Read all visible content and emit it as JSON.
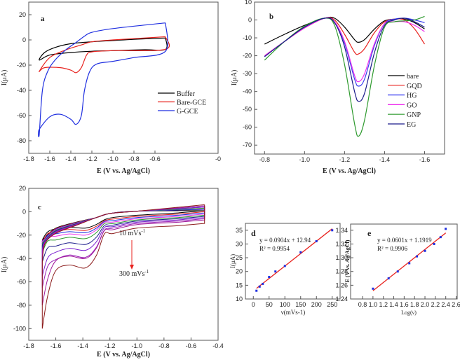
{
  "chart_data": [
    {
      "panel": "a",
      "type": "line",
      "xlabel": "E (V vs. Ag/AgCl)",
      "ylabel": "I(μA)",
      "xlim": [
        -1.8,
        0
      ],
      "ylim": [
        -90,
        30
      ],
      "xticks": [
        -1.8,
        -1.6,
        -1.4,
        -1.2,
        -1.0,
        -0.8,
        -0.6,
        0
      ],
      "xticklabels": [
        "-1.8",
        "-1.6",
        "-1.4",
        "-1.2",
        "-1.0",
        "-0.8",
        "-0.6",
        "-0"
      ],
      "yticks": [
        20,
        0,
        -20,
        -40,
        -60,
        -80
      ],
      "yticklabels": [
        "20",
        "0",
        "-20",
        "-40",
        "-60",
        "-80"
      ],
      "legend": "right",
      "series": [
        {
          "name": "Buffer",
          "color": "#000000",
          "points": [
            [
              -0.5,
              1.5
            ],
            [
              -0.8,
              0.5
            ],
            [
              -1.0,
              -0.5
            ],
            [
              -1.2,
              -1.5
            ],
            [
              -1.4,
              -3
            ],
            [
              -1.55,
              -6
            ],
            [
              -1.65,
              -10
            ],
            [
              -1.7,
              -16
            ],
            [
              -1.6,
              -12
            ],
            [
              -1.4,
              -10
            ],
            [
              -1.2,
              -9
            ],
            [
              -1.0,
              -8.5
            ],
            [
              -0.7,
              -7.8
            ],
            [
              -0.5,
              -7.5
            ],
            [
              -0.5,
              1.5
            ]
          ]
        },
        {
          "name": "Bare-GCE",
          "color": "#e8231f",
          "points": [
            [
              -0.5,
              2.5
            ],
            [
              -1.0,
              0
            ],
            [
              -1.2,
              -1.5
            ],
            [
              -1.3,
              -4
            ],
            [
              -1.45,
              -8
            ],
            [
              -1.6,
              -14
            ],
            [
              -1.7,
              -25
            ],
            [
              -1.65,
              -22
            ],
            [
              -1.5,
              -22
            ],
            [
              -1.4,
              -24
            ],
            [
              -1.35,
              -26
            ],
            [
              -1.3,
              -22
            ],
            [
              -1.25,
              -12
            ],
            [
              -1.2,
              -9.5
            ],
            [
              -1.0,
              -8.5
            ],
            [
              -0.5,
              -7.5
            ],
            [
              -0.5,
              2.5
            ]
          ]
        },
        {
          "name": "G-GCE",
          "color": "#1f2fe0",
          "points": [
            [
              -0.5,
              13.5
            ],
            [
              -1.0,
              9
            ],
            [
              -1.2,
              6
            ],
            [
              -1.27,
              3
            ],
            [
              -1.35,
              -2
            ],
            [
              -1.45,
              -8
            ],
            [
              -1.55,
              -16
            ],
            [
              -1.62,
              -25
            ],
            [
              -1.67,
              -40
            ],
            [
              -1.7,
              -75
            ],
            [
              -1.7,
              -71
            ],
            [
              -1.6,
              -61
            ],
            [
              -1.5,
              -59
            ],
            [
              -1.4,
              -63
            ],
            [
              -1.35,
              -67
            ],
            [
              -1.3,
              -60
            ],
            [
              -1.27,
              -40
            ],
            [
              -1.22,
              -25
            ],
            [
              -1.15,
              -19
            ],
            [
              -1.0,
              -17
            ],
            [
              -0.8,
              -14
            ],
            [
              -0.5,
              -9
            ],
            [
              -0.5,
              13.5
            ]
          ]
        }
      ]
    },
    {
      "panel": "b",
      "type": "line",
      "xlabel": "E (V vs. Ag/AgCl)",
      "ylabel": "I(μA)",
      "xlim": [
        -0.75,
        -1.7
      ],
      "ylim": [
        -75,
        10
      ],
      "xticks": [
        -0.8,
        -1.0,
        -1.2,
        -1.4,
        -1.6
      ],
      "xticklabels": [
        "-0.8",
        "-1.0",
        "-1.2",
        "-1.4",
        "-1.6"
      ],
      "yticks": [
        10,
        0,
        -10,
        -20,
        -30,
        -40,
        -50,
        -60,
        -70
      ],
      "yticklabels": [
        "10",
        "0",
        "-10",
        "-20",
        "-30",
        "-40",
        "-50",
        "-60",
        "-70"
      ],
      "legend": "right",
      "x": [
        -0.8,
        -0.9,
        -1.0,
        -1.1,
        -1.15,
        -1.2,
        -1.25,
        -1.27,
        -1.3,
        -1.35,
        -1.4,
        -1.45,
        -1.5,
        -1.55,
        -1.6
      ],
      "series": [
        {
          "name": "bare",
          "color": "#000000",
          "values": [
            -13.5,
            -8,
            -3,
            1,
            1,
            -4,
            -11,
            -12.5,
            -11,
            -5,
            -0.5,
            0.5,
            0.5,
            -1.5,
            -5
          ]
        },
        {
          "name": "GQD",
          "color": "#e8231f",
          "values": [
            -20,
            -12,
            -4.5,
            1,
            0,
            -8,
            -18,
            -19,
            -16,
            -7,
            -1,
            0.5,
            0,
            -5,
            -13.5
          ]
        },
        {
          "name": "HG",
          "color": "#3a3ef0",
          "values": [
            -20.5,
            -12,
            -4,
            1,
            -1,
            -13,
            -33,
            -37,
            -33,
            -14,
            -2,
            0.5,
            1,
            0,
            -1.5
          ]
        },
        {
          "name": "GO",
          "color": "#ee33ee",
          "values": [
            -20,
            -12,
            -4.5,
            1,
            -1,
            -12,
            -31,
            -34.5,
            -30,
            -13,
            -2,
            -1,
            -1,
            -3,
            -6.5
          ]
        },
        {
          "name": "GNP",
          "color": "#2e9a2e",
          "values": [
            -22.5,
            -12,
            -3.5,
            1,
            -3,
            -25,
            -58,
            -65,
            -56,
            -25,
            -4,
            -1,
            -0.5,
            0,
            2
          ]
        },
        {
          "name": "EG",
          "color": "#1a1a8a",
          "values": [
            -20.5,
            -12,
            -4,
            1,
            -1.5,
            -15,
            -40,
            -45.5,
            -41,
            -18,
            -3,
            0,
            1,
            -1,
            -4
          ]
        }
      ]
    },
    {
      "panel": "c",
      "type": "line",
      "xlabel": "E (V vs. Ag/AgCl)",
      "ylabel": "I(μA)",
      "xlim": [
        -1.8,
        -0.4
      ],
      "ylim": [
        -110,
        20
      ],
      "xticks": [
        -1.8,
        -1.6,
        -1.4,
        -1.2,
        -1.0,
        -0.8,
        -0.6,
        -0.4
      ],
      "xticklabels": [
        "-1.8",
        "-1.6",
        "-1.4",
        "-1.2",
        "-1.0",
        "-0.8",
        "-0.6",
        "-0.4"
      ],
      "yticks": [
        20,
        0,
        -20,
        -40,
        -60,
        -80,
        -100
      ],
      "yticklabels": [
        "20",
        "0",
        "-20",
        "-40",
        "-60",
        "-80",
        "-100"
      ],
      "annotations": {
        "low": "10 mVs",
        "high": "300 mVs",
        "exponent": "-1",
        "arrow_color": "#e8231f"
      },
      "series": [
        {
          "color": "#000000",
          "peak": -14,
          "vertex": -24,
          "top": 1,
          "bottom": 1
        },
        {
          "color": "#e8231f",
          "peak": -16,
          "vertex": -26,
          "top": 2,
          "bottom": 0
        },
        {
          "color": "#1f2fe0",
          "peak": -18,
          "vertex": -28,
          "top": 2,
          "bottom": -1
        },
        {
          "color": "#ee33ee",
          "peak": -20,
          "vertex": -30,
          "top": 3,
          "bottom": -2
        },
        {
          "color": "#2e9a2e",
          "peak": -23,
          "vertex": -35,
          "top": 3,
          "bottom": -3
        },
        {
          "color": "#1a1a8a",
          "peak": -28,
          "vertex": -43,
          "top": 4,
          "bottom": -4
        },
        {
          "color": "#7a1fd0",
          "peak": -33,
          "vertex": -55,
          "top": 4,
          "bottom": -5
        },
        {
          "color": "#9a22b8",
          "peak": -39,
          "vertex": -65,
          "top": 5,
          "bottom": -6
        },
        {
          "color": "#a0189a",
          "peak": -40,
          "vertex": -80,
          "top": 5,
          "bottom": -7
        },
        {
          "color": "#8b1a1a",
          "peak": -48,
          "vertex": -100,
          "top": 6,
          "bottom": -10
        }
      ]
    },
    {
      "panel": "d",
      "type": "scatter",
      "xlabel": "ν(mVs-1)",
      "ylabel": "I(μA)",
      "xlim": [
        -25,
        275
      ],
      "ylim": [
        10,
        37.5
      ],
      "xticks": [
        0,
        50,
        100,
        150,
        200,
        250
      ],
      "xticklabels": [
        "0",
        "50",
        "100",
        "150",
        "200",
        "250"
      ],
      "yticks": [
        10,
        15,
        20,
        25,
        30,
        35
      ],
      "yticklabels": [
        "10",
        "15",
        "20",
        "25",
        "30",
        "35"
      ],
      "x": [
        10,
        20,
        30,
        50,
        70,
        100,
        150,
        200,
        250
      ],
      "y": [
        13,
        14.5,
        15.5,
        18,
        20,
        22,
        27,
        31,
        35
      ],
      "point_color": "#1f2fe0",
      "fit": {
        "slope": 0.0904,
        "intercept": 12.94,
        "range": [
          10,
          250
        ],
        "color": "#e8231f",
        "equation": "y = 0.0904x + 12.94",
        "r2": "R² = 0.9954"
      }
    },
    {
      "panel": "e",
      "type": "scatter",
      "xlabel": "Log(ν)",
      "ylabel": "E (V vs. Ag/AgCl)",
      "xlim": [
        0.57,
        2.62
      ],
      "ylim": [
        1.24,
        1.349
      ],
      "xticks": [
        0.8,
        1.0,
        1.2,
        1.4,
        1.6,
        1.8,
        2.0,
        2.2,
        2.4,
        2.6
      ],
      "xticklabels": [
        "0.8",
        "1.0",
        "1.2",
        "1.4",
        "1.6",
        "1.8",
        "2.0",
        "2.2",
        "2.4",
        "2.6"
      ],
      "yticks": [
        1.24,
        1.26,
        1.28,
        1.3,
        1.32,
        1.34
      ],
      "yticklabels": [
        "1.24",
        "1.26",
        "1.28",
        "1.30",
        "1.32",
        "1.34"
      ],
      "x": [
        1.0,
        1.301,
        1.477,
        1.699,
        1.845,
        2.0,
        2.176,
        2.301,
        2.398
      ],
      "y": [
        1.255,
        1.27,
        1.28,
        1.292,
        1.302,
        1.31,
        1.32,
        1.33,
        1.342
      ],
      "point_color": "#1f2fe0",
      "fit": {
        "slope": 0.0601,
        "intercept": 1.1919,
        "range": [
          1.0,
          2.4
        ],
        "color": "#e8231f",
        "equation": "y = 0.0601x + 1.1919",
        "r2": "R² = 0.9906"
      }
    }
  ]
}
